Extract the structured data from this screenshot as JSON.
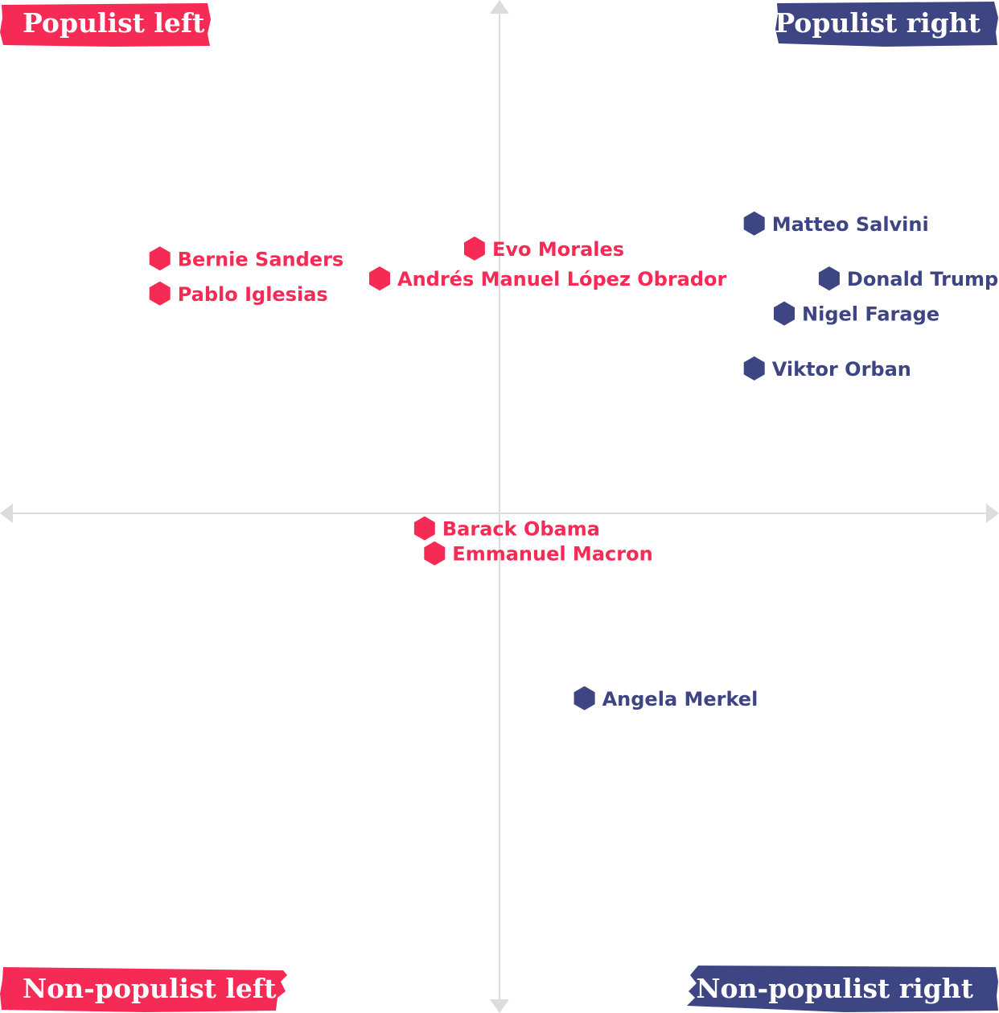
{
  "colors": {
    "left": "#f52a55",
    "right": "#3d4582",
    "axis": "#dcdcdc"
  },
  "quadrant_labels": {
    "top_left": "Populist left",
    "top_right": "Populist right",
    "bottom_left": "Non-populist left",
    "bottom_right": "Non-populist right"
  },
  "chart_data": {
    "type": "scatter",
    "title": "",
    "xlabel": "",
    "ylabel": "",
    "xlim": [
      -1,
      1
    ],
    "ylim": [
      -1,
      1
    ],
    "grid": false,
    "axes": "crossed at origin with arrowheads",
    "points": [
      {
        "name": "Matteo Salvini",
        "side": "right",
        "x": 0.51,
        "y": 0.58
      },
      {
        "name": "Evo Morales",
        "side": "left",
        "x": -0.05,
        "y": 0.53
      },
      {
        "name": "Bernie Sanders",
        "side": "left",
        "x": -0.68,
        "y": 0.51
      },
      {
        "name": "Andrés Manuel López Obrador",
        "side": "left",
        "x": -0.24,
        "y": 0.47
      },
      {
        "name": "Donald Trump",
        "side": "right",
        "x": 0.66,
        "y": 0.47
      },
      {
        "name": "Pablo Iglesias",
        "side": "left",
        "x": -0.68,
        "y": 0.44
      },
      {
        "name": "Nigel Farage",
        "side": "right",
        "x": 0.57,
        "y": 0.4
      },
      {
        "name": "Viktor Orban",
        "side": "right",
        "x": 0.51,
        "y": 0.29
      },
      {
        "name": "Barack Obama",
        "side": "left",
        "x": -0.15,
        "y": -0.03
      },
      {
        "name": "Emmanuel Macron",
        "side": "left",
        "x": -0.13,
        "y": -0.08
      },
      {
        "name": "Angela Merkel",
        "side": "right",
        "x": 0.17,
        "y": -0.37
      }
    ]
  }
}
